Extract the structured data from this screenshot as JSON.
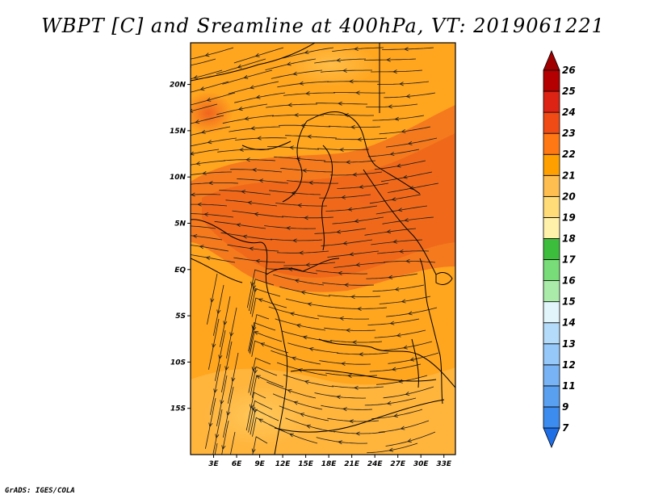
{
  "title": "WBPT [C] and Sreamline at 400hPa, VT: 2019061221",
  "footer": "GrADS: IGES/COLA",
  "map": {
    "lat_labels": [
      "20N",
      "15N",
      "10N",
      "5N",
      "EQ",
      "5S",
      "10S",
      "15S"
    ],
    "lon_labels": [
      "3E",
      "6E",
      "9E",
      "12E",
      "15E",
      "18E",
      "21E",
      "24E",
      "27E",
      "30E",
      "33E"
    ],
    "lon_range": [
      0,
      34.5
    ],
    "lat_range": [
      -20,
      24.5
    ],
    "field": "Wet-bulb potential temperature with streamlines over Central/Southern Africa"
  },
  "colorbar": {
    "levels": [
      "7",
      "9",
      "11",
      "12",
      "13",
      "14",
      "15",
      "16",
      "17",
      "18",
      "19",
      "20",
      "21",
      "22",
      "23",
      "24",
      "25",
      "26"
    ],
    "colors": [
      "#1e6ee6",
      "#3c8cf0",
      "#5aa0f0",
      "#78b4f5",
      "#96c8fa",
      "#b4dcfa",
      "#e1f5fa",
      "#aaebaa",
      "#78dc78",
      "#3cbe3c",
      "#fff0aa",
      "#ffdc78",
      "#ffbe50",
      "#ffa000",
      "#ff7814",
      "#f04b14",
      "#dc2314",
      "#b40000",
      "#a00000"
    ]
  }
}
